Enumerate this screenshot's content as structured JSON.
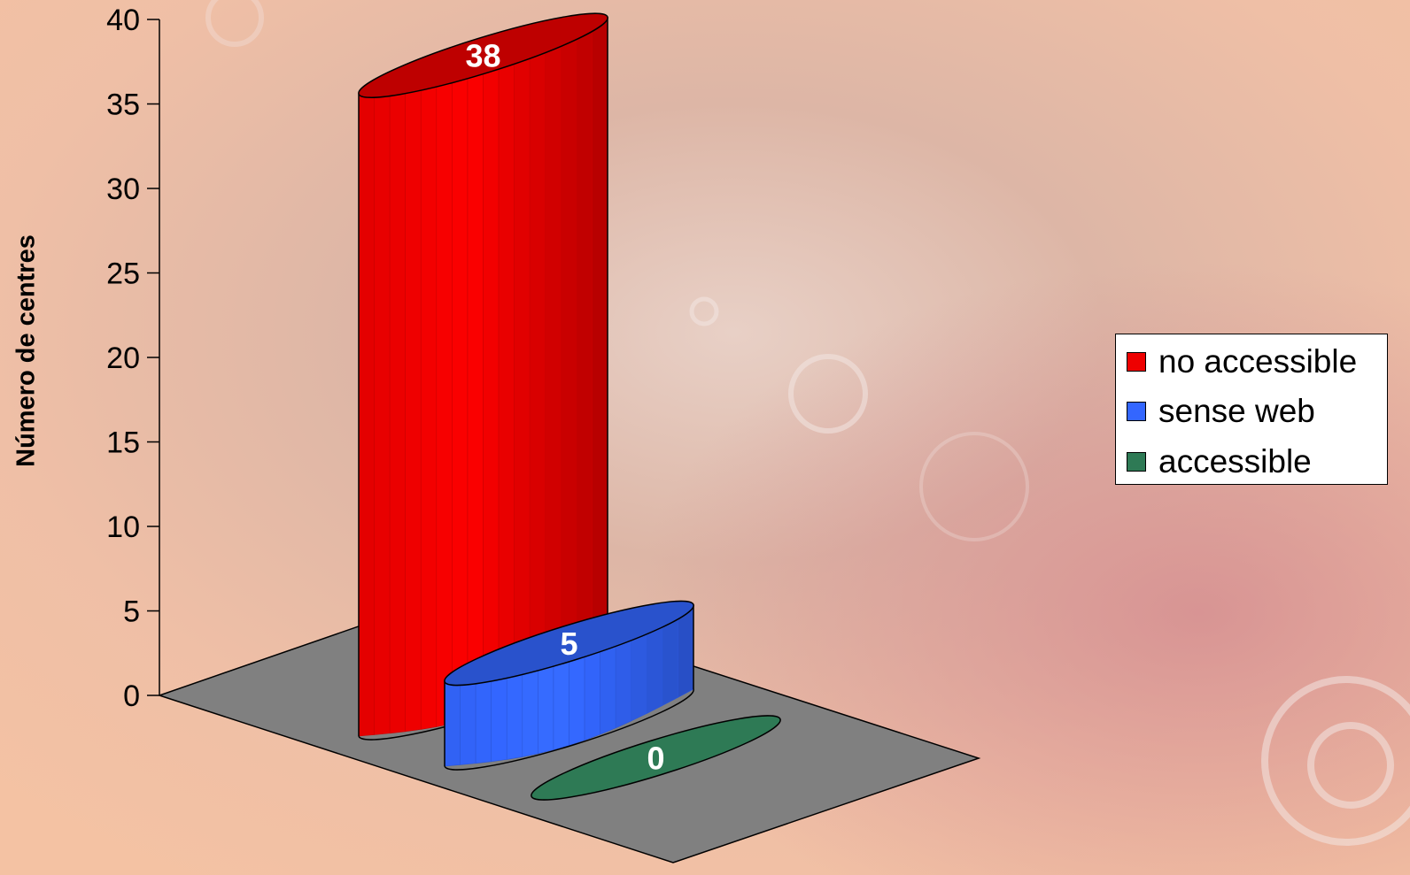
{
  "chart_data": {
    "type": "bar",
    "ylabel": "Número de centres",
    "ylim": [
      0,
      40
    ],
    "yticks": [
      0,
      5,
      10,
      15,
      20,
      25,
      30,
      35,
      40
    ],
    "series": [
      {
        "name": "no accessible",
        "values": [
          38
        ]
      },
      {
        "name": "sense web",
        "values": [
          5
        ]
      },
      {
        "name": "accessible",
        "values": [
          0
        ]
      }
    ],
    "data_labels": [
      "38",
      "5",
      "0"
    ],
    "legend_position": "right",
    "grid": false,
    "colors": {
      "no accessible": "#ee0000",
      "sense web": "#3366ff",
      "accessible": "#2e7a55",
      "floor": "#808080"
    }
  }
}
